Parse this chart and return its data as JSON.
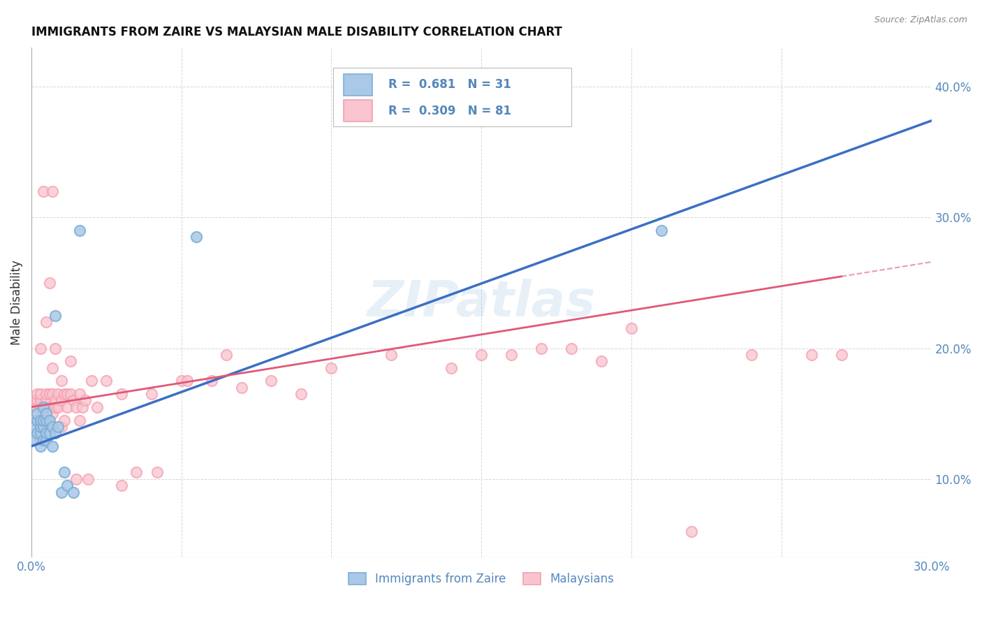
{
  "title": "IMMIGRANTS FROM ZAIRE VS MALAYSIAN MALE DISABILITY CORRELATION CHART",
  "source": "Source: ZipAtlas.com",
  "ylabel": "Male Disability",
  "legend1_r": "0.681",
  "legend1_n": "31",
  "legend2_r": "0.309",
  "legend2_n": "81",
  "legend1_label": "Immigrants from Zaire",
  "legend2_label": "Malaysians",
  "blue_color": "#7bafd4",
  "pink_color": "#f4a0b0",
  "blue_fill_color": "#aac8e8",
  "pink_fill_color": "#f9c4ce",
  "blue_line_color": "#3a6fc4",
  "pink_line_color": "#e05878",
  "text_color": "#5588bb",
  "watermark": "ZIPatlas",
  "xlim": [
    0,
    0.3
  ],
  "ylim": [
    0.04,
    0.43
  ],
  "yticks": [
    0.1,
    0.2,
    0.3,
    0.4
  ],
  "ytick_labels": [
    "10.0%",
    "20.0%",
    "30.0%",
    "40.0%"
  ],
  "xticks": [
    0.0,
    0.05,
    0.1,
    0.15,
    0.2,
    0.25,
    0.3
  ],
  "xtick_labels": [
    "0.0%",
    "",
    "",
    "",
    "",
    "",
    "30.0%"
  ],
  "blue_scatter_x": [
    0.001,
    0.001,
    0.002,
    0.002,
    0.002,
    0.003,
    0.003,
    0.003,
    0.003,
    0.004,
    0.004,
    0.004,
    0.004,
    0.005,
    0.005,
    0.005,
    0.005,
    0.006,
    0.006,
    0.007,
    0.007,
    0.008,
    0.008,
    0.009,
    0.01,
    0.011,
    0.012,
    0.014,
    0.016,
    0.055,
    0.21
  ],
  "blue_scatter_y": [
    0.13,
    0.14,
    0.135,
    0.145,
    0.15,
    0.125,
    0.135,
    0.14,
    0.145,
    0.13,
    0.14,
    0.145,
    0.155,
    0.13,
    0.135,
    0.145,
    0.15,
    0.135,
    0.145,
    0.125,
    0.14,
    0.225,
    0.135,
    0.14,
    0.09,
    0.105,
    0.095,
    0.09,
    0.29,
    0.285,
    0.29
  ],
  "pink_scatter_x": [
    0.001,
    0.001,
    0.001,
    0.002,
    0.002,
    0.002,
    0.002,
    0.003,
    0.003,
    0.003,
    0.003,
    0.003,
    0.003,
    0.004,
    0.004,
    0.004,
    0.004,
    0.005,
    0.005,
    0.005,
    0.005,
    0.005,
    0.006,
    0.006,
    0.006,
    0.006,
    0.007,
    0.007,
    0.007,
    0.007,
    0.007,
    0.008,
    0.008,
    0.008,
    0.009,
    0.009,
    0.01,
    0.01,
    0.01,
    0.011,
    0.011,
    0.012,
    0.012,
    0.013,
    0.013,
    0.014,
    0.015,
    0.015,
    0.016,
    0.016,
    0.017,
    0.018,
    0.019,
    0.02,
    0.022,
    0.025,
    0.03,
    0.03,
    0.035,
    0.04,
    0.042,
    0.05,
    0.052,
    0.06,
    0.065,
    0.07,
    0.08,
    0.09,
    0.1,
    0.12,
    0.14,
    0.15,
    0.16,
    0.17,
    0.18,
    0.19,
    0.2,
    0.22,
    0.24,
    0.26,
    0.27
  ],
  "pink_scatter_y": [
    0.13,
    0.145,
    0.16,
    0.145,
    0.155,
    0.16,
    0.165,
    0.13,
    0.145,
    0.155,
    0.16,
    0.165,
    0.2,
    0.14,
    0.15,
    0.155,
    0.32,
    0.145,
    0.155,
    0.16,
    0.165,
    0.22,
    0.14,
    0.155,
    0.165,
    0.25,
    0.14,
    0.15,
    0.165,
    0.185,
    0.32,
    0.155,
    0.16,
    0.2,
    0.155,
    0.165,
    0.14,
    0.16,
    0.175,
    0.145,
    0.165,
    0.155,
    0.165,
    0.165,
    0.19,
    0.16,
    0.1,
    0.155,
    0.145,
    0.165,
    0.155,
    0.16,
    0.1,
    0.175,
    0.155,
    0.175,
    0.095,
    0.165,
    0.105,
    0.165,
    0.105,
    0.175,
    0.175,
    0.175,
    0.195,
    0.17,
    0.175,
    0.165,
    0.185,
    0.195,
    0.185,
    0.195,
    0.195,
    0.2,
    0.2,
    0.19,
    0.215,
    0.06,
    0.195,
    0.195,
    0.195
  ]
}
